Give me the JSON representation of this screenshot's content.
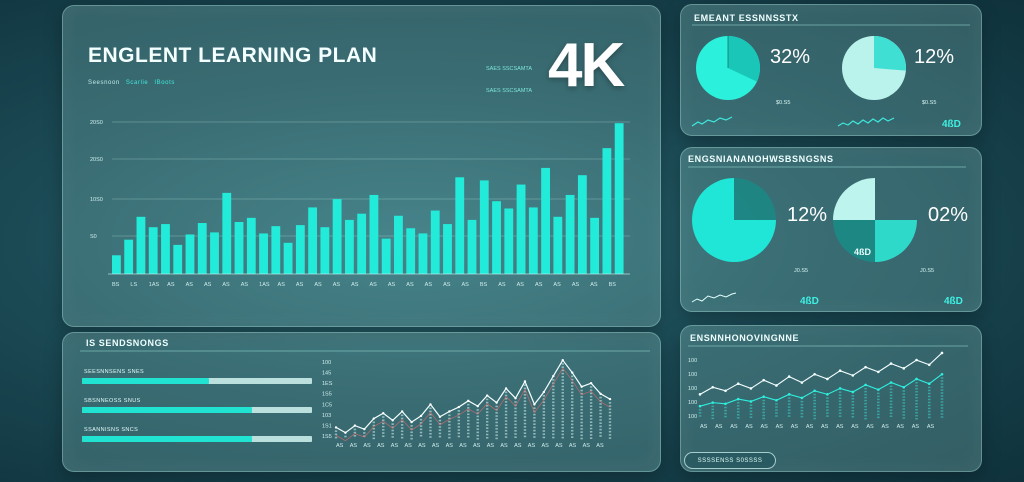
{
  "main": {
    "title": "ENGLENT LEARNING PLAN",
    "subtitle": [
      "Seesnoon",
      "Scarlie",
      "IBoots"
    ],
    "badge": "4K",
    "legend": [
      "SAES SSCSAMTA",
      "SAES SSCSAMTA"
    ],
    "chart": {
      "type": "bar",
      "y_ticks": [
        "20S0",
        "20S0",
        "10S0",
        "S0"
      ],
      "values": [
        18,
        33,
        55,
        45,
        48,
        28,
        38,
        49,
        40,
        78,
        50,
        54,
        39,
        46,
        30,
        47,
        64,
        45,
        72,
        52,
        58,
        76,
        34,
        56,
        44,
        39,
        61,
        48,
        93,
        52,
        90,
        70,
        63,
        86,
        64,
        102,
        55,
        76,
        95,
        54,
        121,
        145
      ],
      "x_labels": [
        "BS",
        "LS",
        "1AS",
        "AS",
        "AS",
        "AS",
        "AS",
        "AS",
        "1AS",
        "AS",
        "AS",
        "AS",
        "AS",
        "AS",
        "AS",
        "AS",
        "AS",
        "AS",
        "AS",
        "AS",
        "BS",
        "AS",
        "AS",
        "AS",
        "AS",
        "AS",
        "AS",
        "BS"
      ]
    }
  },
  "top_right": {
    "title": "EMEANT ESSNNSSTX",
    "pies": [
      {
        "value": 32,
        "label": "32%",
        "foot": "$0.S5"
      },
      {
        "value": 12,
        "label": "12%",
        "foot": "$0.S5"
      }
    ],
    "tag": "4ßD"
  },
  "mid_right": {
    "title": "ENGSNIANANOHWSBSNGSNS",
    "pies": [
      {
        "value": 12,
        "label": "12%",
        "foot": "J0.S5"
      },
      {
        "value": 2,
        "label": "02%",
        "foot": "J0.S5"
      }
    ],
    "inner_tag": "4ßD",
    "tags": [
      "4ßD",
      "4ßD"
    ]
  },
  "bottom_left": {
    "title": "IS SENDSNONGS",
    "progress": [
      {
        "label": "SEESNNSENS SNES",
        "value": 0.55
      },
      {
        "label": "SBSNNEOSS SNUS",
        "value": 0.74
      },
      {
        "label": "SSANNISNS SNCS",
        "value": 0.74
      }
    ],
    "chart": {
      "type": "line",
      "y_ticks": [
        "100",
        "145",
        "1ES",
        "1S5",
        "1C5",
        "103",
        "1S1",
        "1S5"
      ],
      "values": [
        12,
        6,
        14,
        10,
        22,
        28,
        20,
        30,
        18,
        25,
        38,
        24,
        30,
        35,
        42,
        36,
        48,
        40,
        56,
        45,
        64,
        38,
        52,
        70,
        88,
        74,
        58,
        62,
        50,
        44
      ],
      "x_labels": [
        "AS",
        "AS",
        "AS",
        "AS",
        "AS",
        "AS",
        "AS",
        "AS",
        "AS",
        "AS",
        "AS",
        "AS",
        "AS",
        "AS",
        "AS",
        "AS",
        "AS",
        "AS",
        "AS",
        "AS"
      ]
    }
  },
  "bottom_right": {
    "title": "ENSNNHONOVINGNNE",
    "chart": {
      "type": "line",
      "y_ticks": [
        "100",
        "100",
        "100",
        "100",
        "100"
      ],
      "series": [
        {
          "values": [
            40,
            52,
            46,
            58,
            50,
            64,
            55,
            70,
            60,
            74,
            66,
            80,
            72,
            86,
            78,
            92,
            84,
            98,
            90,
            110
          ]
        },
        {
          "values": [
            20,
            26,
            24,
            32,
            28,
            36,
            30,
            40,
            34,
            46,
            40,
            50,
            44,
            56,
            48,
            60,
            52,
            66,
            58,
            74
          ]
        }
      ],
      "x_labels": [
        "AS",
        "AS",
        "AS",
        "AS",
        "AS",
        "AS",
        "AS",
        "AS",
        "AS",
        "AS",
        "AS",
        "AS",
        "AS",
        "AS",
        "AS",
        "AS"
      ]
    },
    "button": "SSSSENSS S0SSSS"
  },
  "colors": {
    "accent": "#20e3d2",
    "accent_light": "#7ff0e6",
    "text": "#ffffff"
  }
}
